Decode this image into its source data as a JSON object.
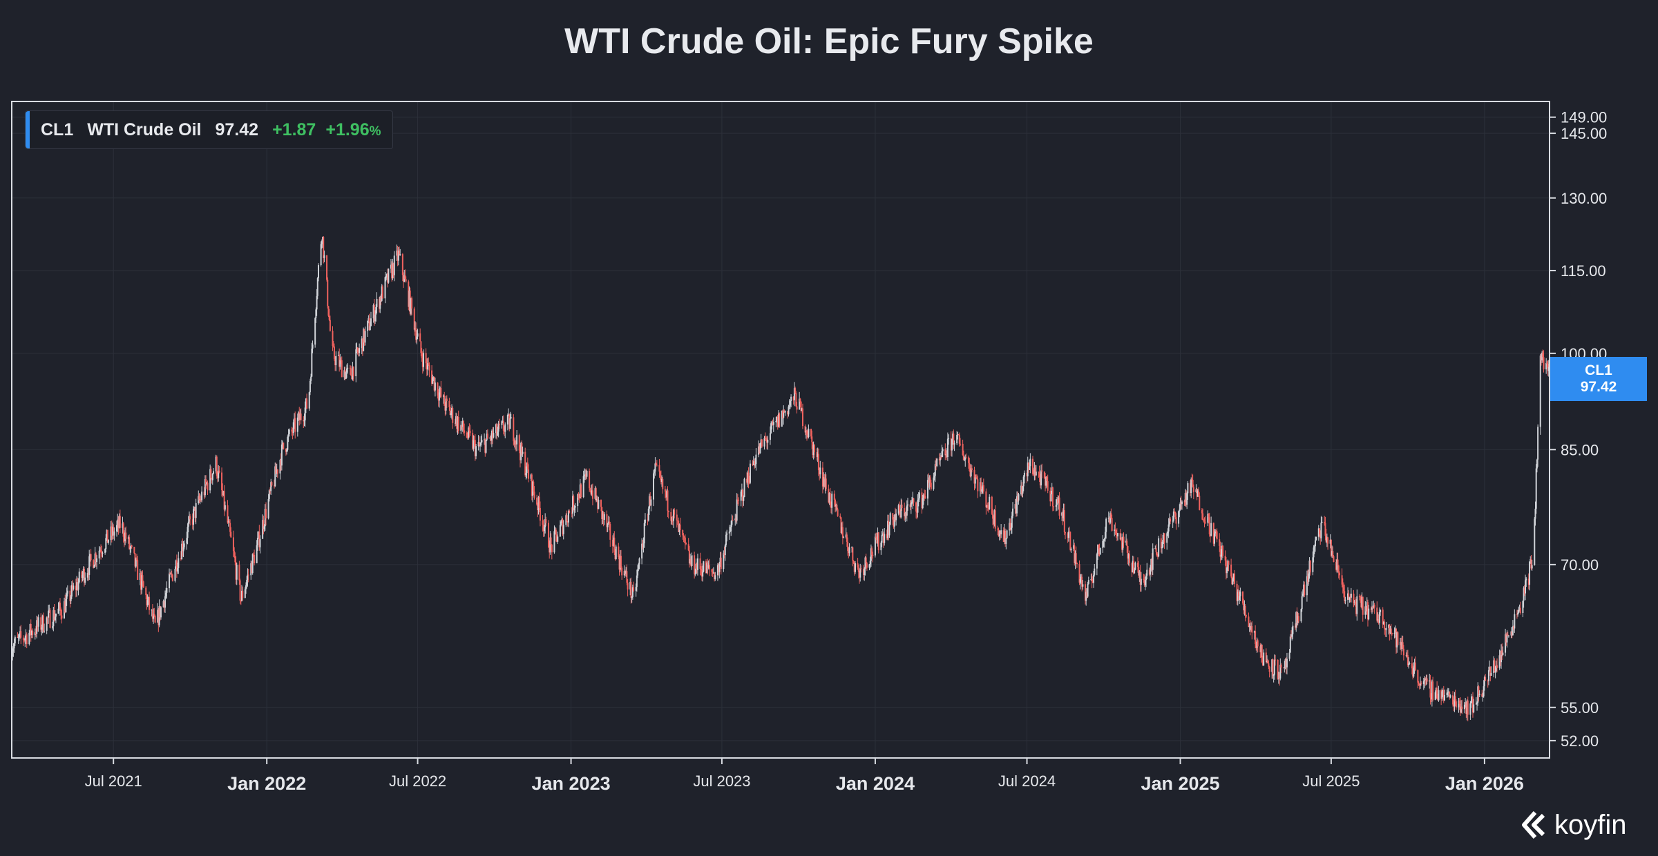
{
  "chart_data": {
    "type": "candlestick",
    "title": "WTI Crude Oil: Epic Fury Spike",
    "xlabel": "",
    "ylabel": "",
    "x_range": [
      "2021-03-01",
      "2026-03-20"
    ],
    "ylim": [
      50.5,
      153
    ],
    "y_scale": "log",
    "y_ticks": [
      "149.00",
      "145.00",
      "130.00",
      "115.00",
      "100.00",
      "85.00",
      "70.00",
      "55.00",
      "52.00"
    ],
    "x_ticks": [
      {
        "date": "2021-07-01",
        "label": "Jul 2021",
        "major": false
      },
      {
        "date": "2022-01-01",
        "label": "Jan 2022",
        "major": true
      },
      {
        "date": "2022-07-01",
        "label": "Jul 2022",
        "major": false
      },
      {
        "date": "2023-01-01",
        "label": "Jan 2023",
        "major": true
      },
      {
        "date": "2023-07-01",
        "label": "Jul 2023",
        "major": false
      },
      {
        "date": "2024-01-01",
        "label": "Jan 2024",
        "major": true
      },
      {
        "date": "2024-07-01",
        "label": "Jul 2024",
        "major": false
      },
      {
        "date": "2025-01-01",
        "label": "Jan 2025",
        "major": true
      },
      {
        "date": "2025-07-01",
        "label": "Jul 2025",
        "major": false
      },
      {
        "date": "2026-01-01",
        "label": "Jan 2026",
        "major": true
      }
    ],
    "grid": true,
    "series": [
      {
        "name": "CL1",
        "points": [
          [
            "2021-03-01",
            61
          ],
          [
            "2021-04-01",
            63
          ],
          [
            "2021-05-01",
            65
          ],
          [
            "2021-06-15",
            72
          ],
          [
            "2021-07-10",
            75
          ],
          [
            "2021-08-20",
            63
          ],
          [
            "2021-10-01",
            75
          ],
          [
            "2021-11-01",
            83
          ],
          [
            "2021-12-01",
            66
          ],
          [
            "2021-12-20",
            72
          ],
          [
            "2022-01-20",
            85
          ],
          [
            "2022-02-20",
            92
          ],
          [
            "2022-03-08",
            123
          ],
          [
            "2022-03-20",
            100
          ],
          [
            "2022-04-10",
            96
          ],
          [
            "2022-05-01",
            104
          ],
          [
            "2022-06-08",
            118
          ],
          [
            "2022-07-05",
            100
          ],
          [
            "2022-08-01",
            92
          ],
          [
            "2022-09-10",
            85
          ],
          [
            "2022-10-20",
            89
          ],
          [
            "2022-12-08",
            72
          ],
          [
            "2023-01-20",
            81
          ],
          [
            "2023-03-17",
            66
          ],
          [
            "2023-04-12",
            82
          ],
          [
            "2023-05-25",
            70
          ],
          [
            "2023-06-25",
            69
          ],
          [
            "2023-08-10",
            84
          ],
          [
            "2023-09-27",
            93
          ],
          [
            "2023-11-05",
            79
          ],
          [
            "2023-12-12",
            69
          ],
          [
            "2024-01-25",
            76
          ],
          [
            "2024-02-25",
            78
          ],
          [
            "2024-04-05",
            87
          ],
          [
            "2024-06-04",
            73
          ],
          [
            "2024-07-05",
            83
          ],
          [
            "2024-08-10",
            77
          ],
          [
            "2024-09-10",
            66
          ],
          [
            "2024-10-07",
            76
          ],
          [
            "2024-11-15",
            68
          ],
          [
            "2025-01-15",
            80
          ],
          [
            "2025-03-01",
            69
          ],
          [
            "2025-04-09",
            60
          ],
          [
            "2025-05-05",
            58
          ],
          [
            "2025-06-20",
            75
          ],
          [
            "2025-07-20",
            66
          ],
          [
            "2025-09-01",
            64
          ],
          [
            "2025-10-20",
            57
          ],
          [
            "2025-12-16",
            55
          ],
          [
            "2026-01-20",
            60
          ],
          [
            "2026-02-15",
            66
          ],
          [
            "2026-03-01",
            71
          ],
          [
            "2026-03-09",
            99
          ],
          [
            "2026-03-20",
            97.42
          ]
        ]
      }
    ]
  },
  "legend": {
    "symbol": "CL1",
    "name": "WTI Crude Oil",
    "last": "97.42",
    "change": "+1.87",
    "change_pct_num": "+1.96",
    "change_pct_sign": "%"
  },
  "price_tag": {
    "symbol": "CL1",
    "value": "97.42"
  },
  "logo": {
    "text": "koyfin"
  },
  "colors": {
    "background": "#1f222b",
    "down_candle": "#f0625e",
    "up_candle": "#d0d3d8",
    "accent": "#2f8cf0",
    "positive": "#3fc062"
  }
}
